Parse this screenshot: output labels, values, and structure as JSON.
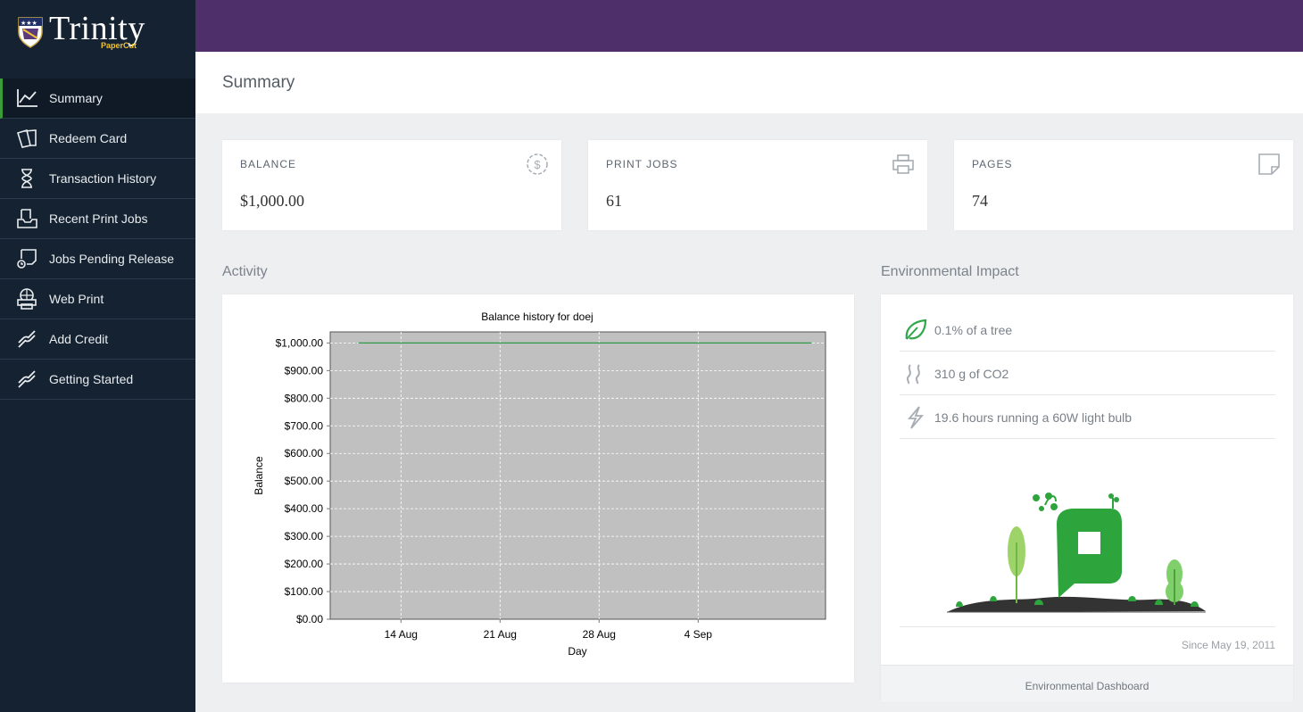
{
  "brand": {
    "name": "Trinity",
    "sub": "PaperCut"
  },
  "nav": [
    {
      "label": "Summary",
      "icon": "chart-line-icon",
      "active": true
    },
    {
      "label": "Redeem Card",
      "icon": "cards-icon"
    },
    {
      "label": "Transaction History",
      "icon": "hourglass-icon"
    },
    {
      "label": "Recent Print Jobs",
      "icon": "inbox-tray-icon"
    },
    {
      "label": "Jobs Pending Release",
      "icon": "pending-release-icon"
    },
    {
      "label": "Web Print",
      "icon": "web-print-icon"
    },
    {
      "label": "Add Credit",
      "icon": "link-icon"
    },
    {
      "label": "Getting Started",
      "icon": "link-icon"
    }
  ],
  "page": {
    "title": "Summary"
  },
  "stats": {
    "balance": {
      "label": "BALANCE",
      "value": "$1,000.00",
      "icon": "dollar-circle-icon"
    },
    "print_jobs": {
      "label": "PRINT JOBS",
      "value": "61",
      "icon": "printer-icon"
    },
    "pages": {
      "label": "PAGES",
      "value": "74",
      "icon": "page-icon"
    }
  },
  "sections": {
    "activity": "Activity",
    "environment": "Environmental Impact"
  },
  "environment": {
    "rows": [
      {
        "text": "0.1% of a tree",
        "icon": "leaf-icon"
      },
      {
        "text": "310 g of CO2",
        "icon": "fumes-icon"
      },
      {
        "text": "19.6 hours running a 60W light bulb",
        "icon": "lightning-icon"
      }
    ],
    "since": "Since May 19, 2011",
    "dashboard_link": "Environmental Dashboard"
  },
  "colors": {
    "topbar": "#4e2f6a",
    "sidebar": "#152231",
    "accent": "#3a9d3a",
    "line": "#2e9a48",
    "plot_bg": "#c0c0c0"
  },
  "chart_data": {
    "type": "line",
    "title": "Balance history for doej",
    "xlabel": "Day",
    "ylabel": "Balance",
    "x_ticks": [
      "14 Aug",
      "21 Aug",
      "28 Aug",
      "4 Sep"
    ],
    "y_ticks": [
      "$0.00",
      "$100.00",
      "$200.00",
      "$300.00",
      "$400.00",
      "$500.00",
      "$600.00",
      "$700.00",
      "$800.00",
      "$900.00",
      "$1,000.00"
    ],
    "ylim": [
      0,
      1040
    ],
    "grid": true,
    "series": [
      {
        "x": [
          "2011-08-11",
          "2011-09-12"
        ],
        "values": [
          1000,
          1000
        ]
      }
    ]
  }
}
